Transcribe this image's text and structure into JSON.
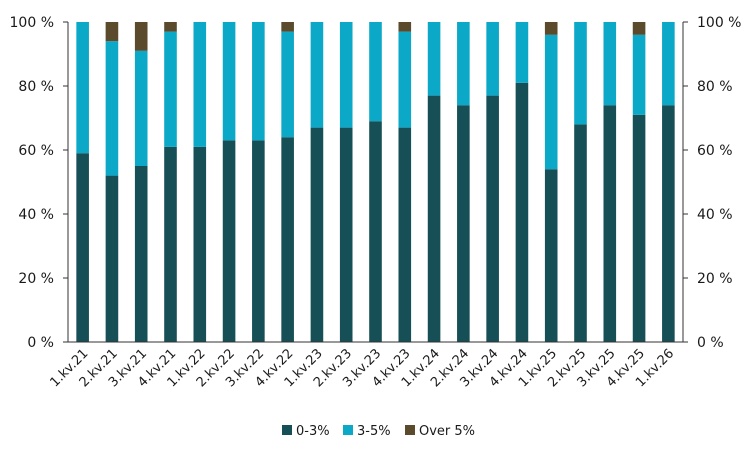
{
  "chart_data": {
    "type": "bar",
    "stacked": true,
    "categories": [
      "1.kv.21",
      "2.kv.21",
      "3.kv.21",
      "4.kv.21",
      "1.kv.22",
      "2.kv.22",
      "3.kv.22",
      "4.kv.22",
      "1.kv.23",
      "2.kv.23",
      "3.kv.23",
      "4.kv.23",
      "1.kv.24",
      "2.kv.24",
      "3.kv.24",
      "4.kv.24",
      "1.kv.25",
      "2.kv.25",
      "3.kv.25",
      "4.kv.25",
      "1.kv.26"
    ],
    "series": [
      {
        "name": "0-3%",
        "color": "#174f57",
        "values": [
          59,
          52,
          55,
          61,
          61,
          63,
          63,
          64,
          67,
          67,
          69,
          67,
          77,
          74,
          77,
          81,
          54,
          68,
          74,
          71,
          74
        ]
      },
      {
        "name": "3-5%",
        "color": "#0ba8c7",
        "values": [
          41,
          42,
          36,
          36,
          39,
          37,
          37,
          33,
          33,
          33,
          31,
          30,
          23,
          26,
          23,
          19,
          42,
          32,
          26,
          25,
          26
        ]
      },
      {
        "name": "Over 5%",
        "color": "#5b4a2c",
        "values": [
          0,
          6,
          9,
          3,
          0,
          0,
          0,
          3,
          0,
          0,
          0,
          3,
          0,
          0,
          0,
          0,
          4,
          0,
          0,
          4,
          0
        ]
      }
    ],
    "ylim": [
      0,
      100
    ],
    "y_ticks": [
      "0 %",
      "20 %",
      "40 %",
      "60 %",
      "80 %",
      "100 %"
    ],
    "y_tick_values": [
      0,
      20,
      40,
      60,
      80,
      100
    ],
    "axes": "left-and-right",
    "grid": false,
    "legend_position": "bottom-center",
    "xlabel": "",
    "ylabel": ""
  }
}
